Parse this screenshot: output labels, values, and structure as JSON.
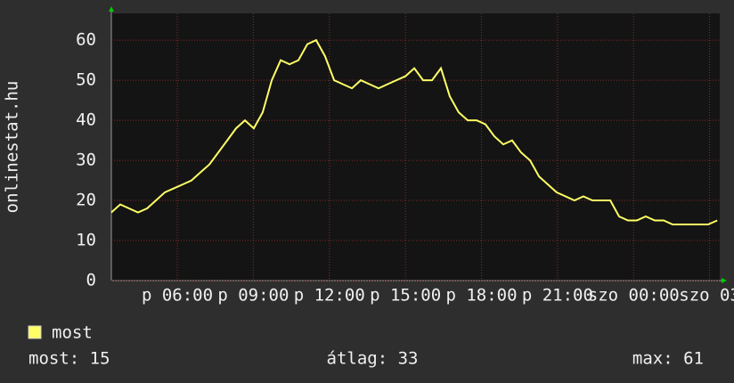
{
  "chart_data": {
    "type": "line",
    "ylabel": "onlinestat.hu",
    "x": [
      3.4,
      3.75,
      4.1,
      4.45,
      4.81,
      5.16,
      5.51,
      5.86,
      6.21,
      6.56,
      6.91,
      7.27,
      7.62,
      7.97,
      8.32,
      8.67,
      9.02,
      9.37,
      9.73,
      10.08,
      10.43,
      10.78,
      11.13,
      11.48,
      11.83,
      12.19,
      12.54,
      12.89,
      13.24,
      13.59,
      13.94,
      14.29,
      14.64,
      15.0,
      15.35,
      15.7,
      16.05,
      16.4,
      16.75,
      17.1,
      17.46,
      17.81,
      18.16,
      18.51,
      18.86,
      19.21,
      19.56,
      19.92,
      20.27,
      20.62,
      20.97,
      21.32,
      21.67,
      22.02,
      22.38,
      22.73,
      23.08,
      23.43,
      23.78,
      24.13,
      24.48,
      24.84,
      25.19,
      25.54,
      25.89,
      26.24,
      26.59,
      26.94,
      27.3
    ],
    "series": [
      {
        "name": "most",
        "color": "#ffff66",
        "values": [
          17,
          19,
          18,
          17,
          18,
          20,
          22,
          23,
          24,
          25,
          27,
          29,
          32,
          35,
          38,
          40,
          38,
          42,
          50,
          55,
          54,
          55,
          59,
          60,
          56,
          50,
          49,
          48,
          50,
          49,
          48,
          49,
          50,
          51,
          53,
          50,
          50,
          53,
          46,
          42,
          40,
          40,
          39,
          36,
          34,
          35,
          32,
          30,
          26,
          24,
          22,
          21,
          20,
          21,
          20,
          20,
          20,
          16,
          15,
          15,
          16,
          15,
          15,
          14,
          14,
          14,
          14,
          14,
          15
        ]
      }
    ],
    "xlim": [
      3.4,
      27.4
    ],
    "xticks": [
      {
        "value": 6,
        "label": "p 06:00"
      },
      {
        "value": 9,
        "label": "p 09:00"
      },
      {
        "value": 12,
        "label": "p 12:00"
      },
      {
        "value": 15,
        "label": "p 15:00"
      },
      {
        "value": 18,
        "label": "p 18:00"
      },
      {
        "value": 21,
        "label": "p 21:00"
      },
      {
        "value": 24,
        "label": "szo 00:00"
      },
      {
        "value": 27,
        "label": "szo 03"
      }
    ],
    "ylim": [
      0,
      66.7
    ],
    "yticks": [
      0,
      10,
      20,
      30,
      40,
      50,
      60
    ],
    "grid": true,
    "stats": [
      "most: 15",
      "átlag: 33",
      "max: 61"
    ]
  }
}
